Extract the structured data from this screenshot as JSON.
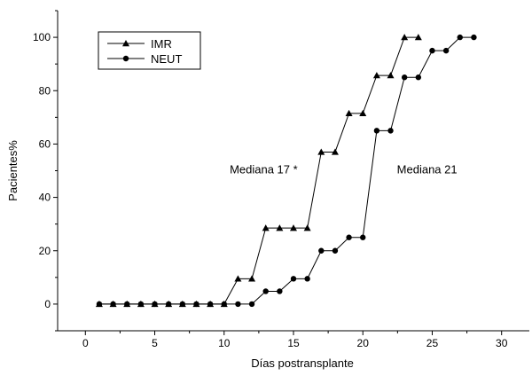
{
  "chart_data": {
    "type": "line",
    "title": "",
    "xlabel": "Días postransplante",
    "ylabel": "Pacientes%",
    "xlim": [
      -2,
      32
    ],
    "ylim": [
      -10,
      110
    ],
    "xticks": [
      0,
      5,
      10,
      15,
      20,
      25,
      30
    ],
    "yticks": [
      0,
      20,
      40,
      60,
      80,
      100
    ],
    "grid": false,
    "legend_position": "top-left",
    "series": [
      {
        "name": "IMR",
        "marker": "triangle",
        "color": "#000000",
        "x": [
          1,
          2,
          3,
          4,
          5,
          6,
          7,
          8,
          9,
          10,
          11,
          12,
          13,
          14,
          15,
          16,
          17,
          18,
          19,
          20,
          21,
          22,
          23,
          24
        ],
        "y": [
          0,
          0,
          0,
          0,
          0,
          0,
          0,
          0,
          0,
          0,
          9.5,
          9.5,
          28.5,
          28.5,
          28.5,
          28.5,
          57,
          57,
          71.5,
          71.5,
          85.7,
          85.7,
          100,
          100
        ]
      },
      {
        "name": "NEUT",
        "marker": "circle",
        "color": "#000000",
        "x": [
          1,
          2,
          3,
          4,
          5,
          6,
          7,
          8,
          9,
          10,
          11,
          12,
          13,
          14,
          15,
          16,
          17,
          18,
          19,
          20,
          21,
          22,
          23,
          24,
          25,
          26,
          27,
          28
        ],
        "y": [
          0,
          0,
          0,
          0,
          0,
          0,
          0,
          0,
          0,
          0,
          0,
          0,
          4.8,
          4.8,
          9.5,
          9.5,
          20,
          20,
          25,
          25,
          65,
          65,
          85,
          85,
          95,
          95,
          100,
          100
        ]
      }
    ],
    "annotations": [
      {
        "text": "Mediana 17 *",
        "x": 15.3,
        "y": 49
      },
      {
        "text": "Mediana 21",
        "x": 26.8,
        "y": 49
      }
    ]
  }
}
